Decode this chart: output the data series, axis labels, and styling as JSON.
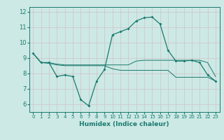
{
  "xlabel": "Humidex (Indice chaleur)",
  "ylabel": "",
  "background_color": "#cce9e5",
  "grid_color": "#b8d8d4",
  "line_color": "#1a7a6e",
  "xlim": [
    -0.5,
    23.5
  ],
  "ylim": [
    5.5,
    12.3
  ],
  "xticks": [
    0,
    1,
    2,
    3,
    4,
    5,
    6,
    7,
    8,
    9,
    10,
    11,
    12,
    13,
    14,
    15,
    16,
    17,
    18,
    19,
    20,
    21,
    22,
    23
  ],
  "yticks": [
    6,
    7,
    8,
    9,
    10,
    11,
    12
  ],
  "series": {
    "main": {
      "x": [
        0,
        1,
        2,
        3,
        4,
        5,
        6,
        7,
        8,
        9,
        10,
        11,
        12,
        13,
        14,
        15,
        16,
        17,
        18,
        19,
        20,
        21,
        22,
        23
      ],
      "y": [
        9.3,
        8.7,
        8.7,
        7.8,
        7.9,
        7.8,
        6.3,
        5.9,
        7.5,
        8.25,
        10.5,
        10.7,
        10.9,
        11.4,
        11.6,
        11.65,
        11.2,
        9.5,
        8.8,
        8.8,
        8.85,
        8.7,
        7.9,
        7.5
      ]
    },
    "upper": {
      "x": [
        0,
        1,
        2,
        3,
        4,
        5,
        6,
        7,
        8,
        9,
        10,
        11,
        12,
        13,
        14,
        15,
        16,
        17,
        18,
        19,
        20,
        21,
        22,
        23
      ],
      "y": [
        9.3,
        8.7,
        8.7,
        8.6,
        8.55,
        8.55,
        8.55,
        8.55,
        8.55,
        8.55,
        8.55,
        8.55,
        8.55,
        8.8,
        8.85,
        8.85,
        8.85,
        8.85,
        8.85,
        8.85,
        8.85,
        8.85,
        8.7,
        7.8
      ]
    },
    "lower": {
      "x": [
        0,
        1,
        2,
        3,
        4,
        5,
        6,
        7,
        8,
        9,
        10,
        11,
        12,
        13,
        14,
        15,
        16,
        17,
        18,
        19,
        20,
        21,
        22,
        23
      ],
      "y": [
        9.3,
        8.7,
        8.65,
        8.55,
        8.5,
        8.5,
        8.5,
        8.5,
        8.5,
        8.5,
        8.3,
        8.2,
        8.2,
        8.2,
        8.2,
        8.2,
        8.2,
        8.2,
        7.75,
        7.75,
        7.75,
        7.75,
        7.75,
        7.5
      ]
    }
  }
}
